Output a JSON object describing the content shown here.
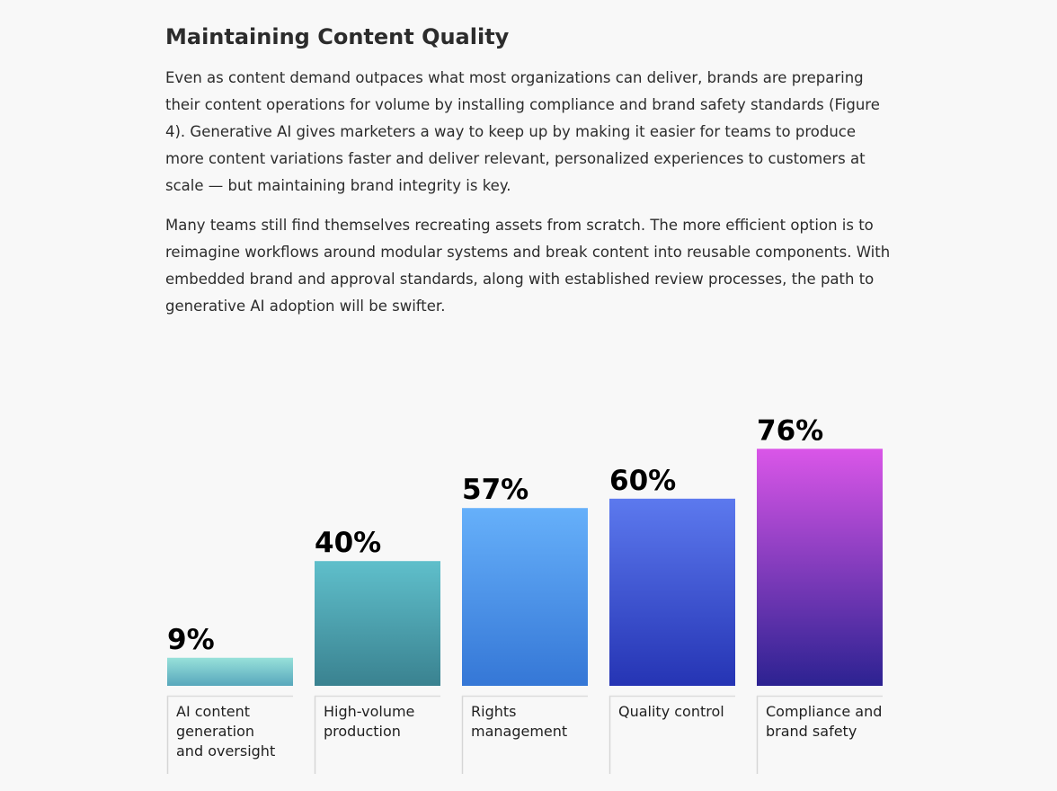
{
  "article": {
    "heading": "Maintaining Content Quality",
    "paragraphs": [
      "Even as content demand outpaces what most organizations can deliver, brands are preparing their content operations for volume by installing compliance and brand safety standards (Figure 4). Generative AI gives marketers a way to keep up by making it easier for teams to produce more content variations faster and deliver relevant, personalized experiences to customers at scale — but maintaining brand integrity is key.",
      "Many teams still find themselves recreating assets from scratch. The more efficient option is to reimagine workflows around modular systems and break content into reusable components. With embedded brand and approval standards, along with established review processes, the path to generative AI adoption will be swifter."
    ]
  },
  "chart_data": {
    "type": "bar",
    "title": "",
    "xlabel": "",
    "ylabel": "",
    "ylim": [
      0,
      100
    ],
    "grid": false,
    "categories": [
      "AI content generation and oversight",
      "High-volume production",
      "Rights management",
      "Quality control",
      "Compliance and brand safety"
    ],
    "category_label_lines": [
      [
        "AI content",
        "generation",
        "and oversight"
      ],
      [
        "High-volume",
        "production"
      ],
      [
        "Rights",
        "management"
      ],
      [
        "Quality control"
      ],
      [
        "Compliance and",
        "brand safety"
      ]
    ],
    "values": [
      9,
      40,
      57,
      60,
      76
    ],
    "value_labels": [
      "9%",
      "40%",
      "57%",
      "60%",
      "76%"
    ],
    "bar_gradients": [
      [
        "#97e1da",
        "#58a7bc"
      ],
      [
        "#5fbfcb",
        "#3a8290"
      ],
      [
        "#66b0fa",
        "#3577d6"
      ],
      [
        "#5c79ee",
        "#2534b4"
      ],
      [
        "#da56e8",
        "#2c2291"
      ]
    ]
  }
}
